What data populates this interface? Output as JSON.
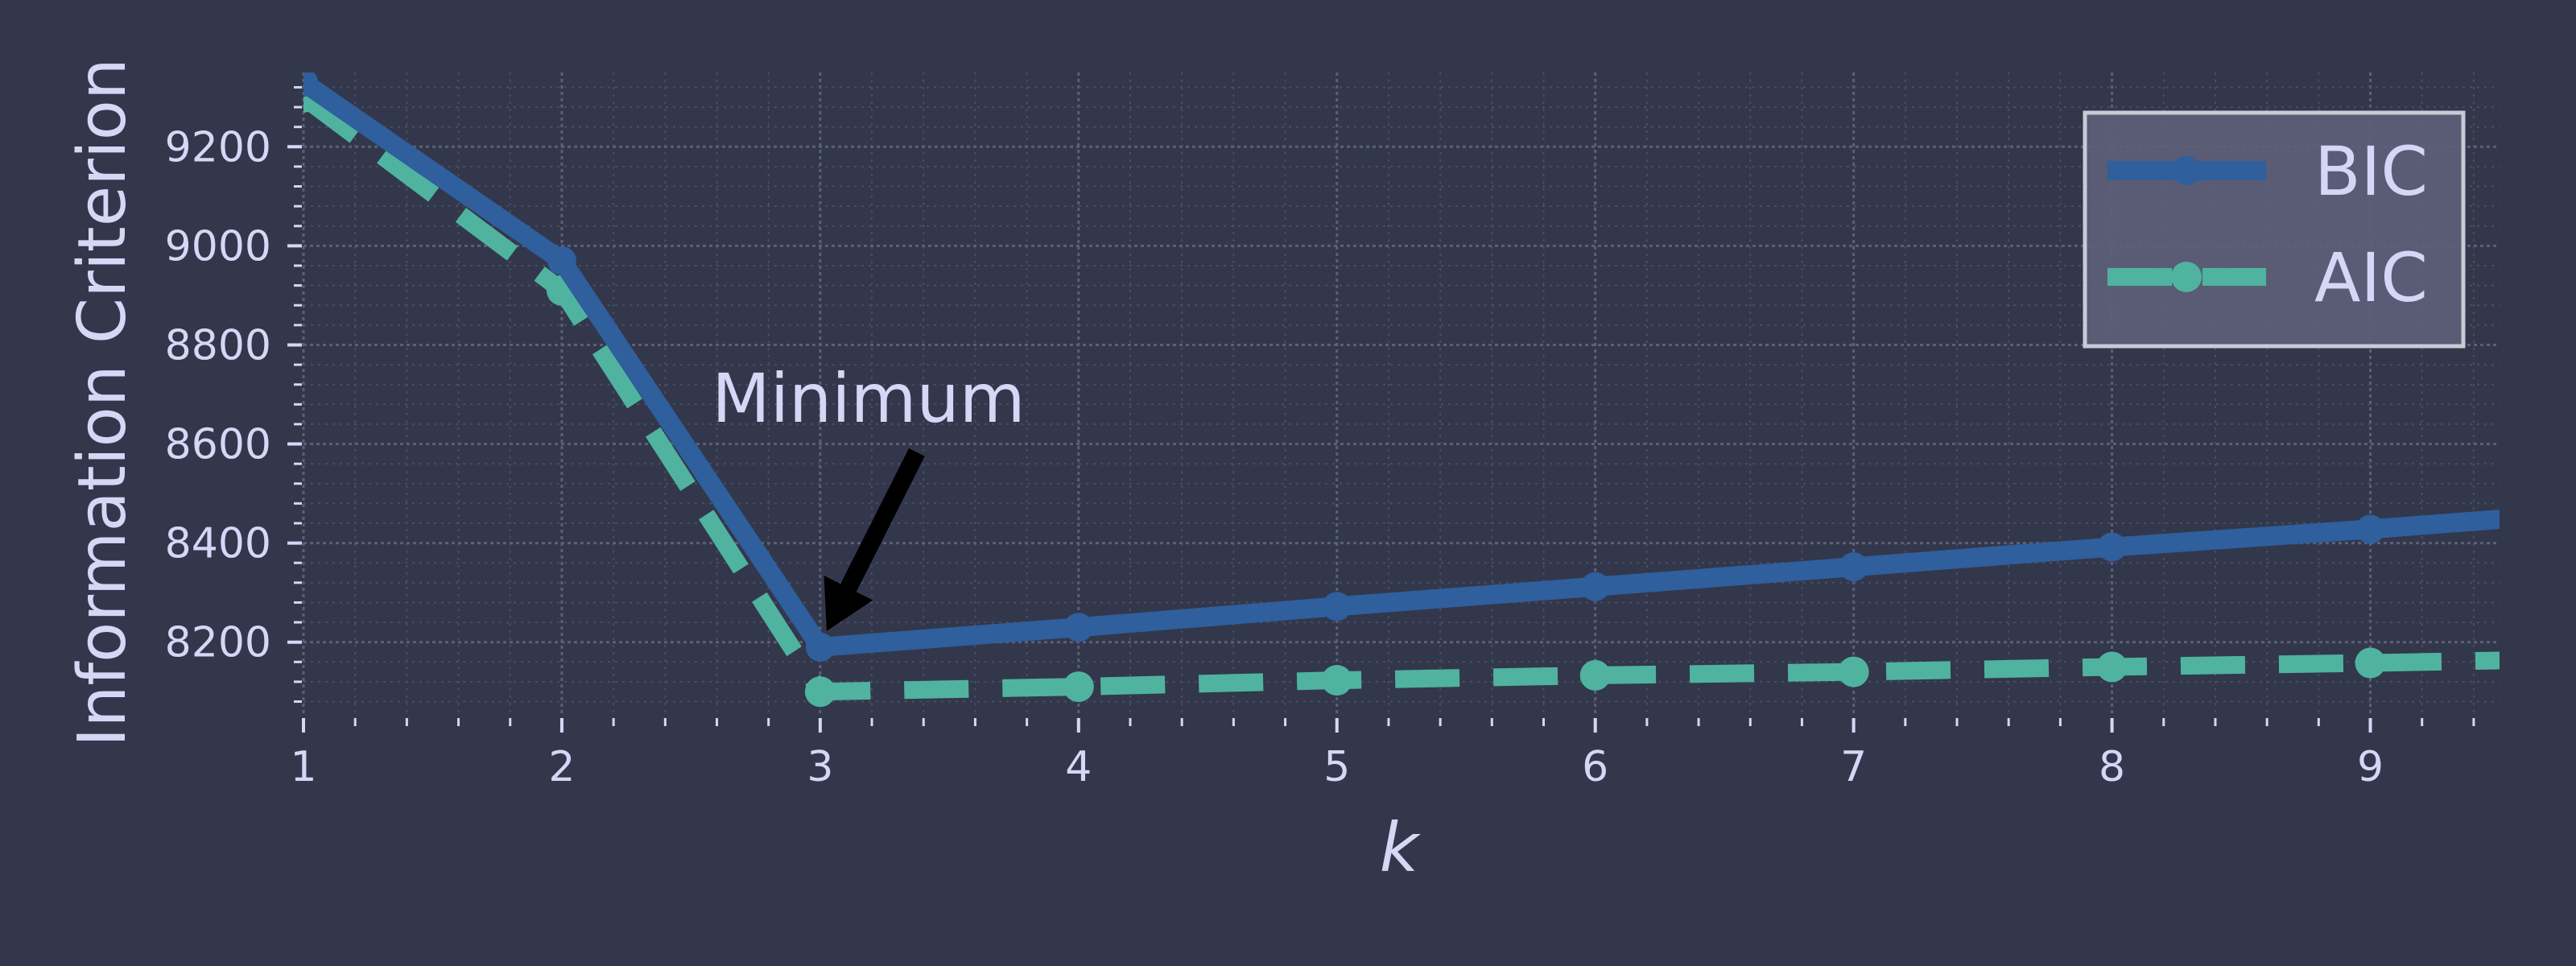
{
  "colors": {
    "background": "#33374b",
    "text": "#d4d7f5",
    "grid_major": "#5b6078",
    "grid_minor": "#4a4e64",
    "bic": "#2f5f9c",
    "aic": "#4fb3a0",
    "legend_bg": "#5d6179",
    "legend_border": "#c8cad6",
    "arrow": "#000000"
  },
  "chart_data": {
    "type": "line",
    "xlabel": "k",
    "ylabel": "Information Criterion",
    "xlim": [
      1,
      9.5
    ],
    "ylim": [
      8050,
      9350
    ],
    "xticks": [
      1,
      2,
      3,
      4,
      5,
      6,
      7,
      8,
      9
    ],
    "yticks": [
      8200,
      8400,
      8600,
      8800,
      9000,
      9200
    ],
    "grid": true,
    "legend_position": "top-right",
    "series": [
      {
        "name": "BIC",
        "style": "solid",
        "x": [
          1,
          2,
          3,
          4,
          5,
          6,
          7,
          8,
          9,
          10
        ],
        "y": [
          9330,
          8970,
          8190,
          8230,
          8272,
          8312,
          8352,
          8392,
          8428,
          8468
        ]
      },
      {
        "name": "AIC",
        "style": "dashed",
        "x": [
          1,
          2,
          3,
          4,
          5,
          6,
          7,
          8,
          9,
          10
        ],
        "y": [
          9300,
          8910,
          8100,
          8110,
          8123,
          8133,
          8140,
          8150,
          8158,
          8168
        ]
      }
    ],
    "annotations": [
      {
        "text": "Minimum",
        "x": 3,
        "y": 8190
      }
    ]
  }
}
